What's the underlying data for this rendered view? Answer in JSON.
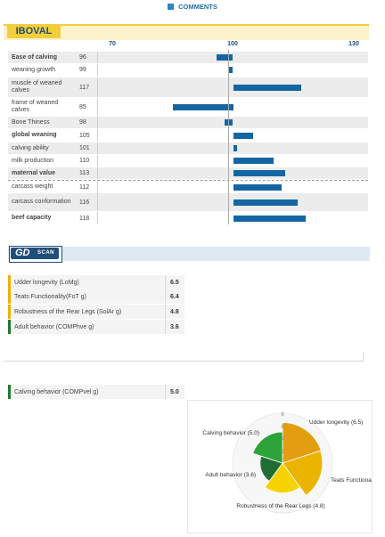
{
  "header": {
    "comments_label": "COMMENTS",
    "accent": "#2a85c2"
  },
  "iboval": {
    "title": "IBOVAL",
    "ticks": [
      "70",
      "100",
      "130"
    ],
    "rows": [
      {
        "label": "Ease of calving",
        "value": "96",
        "bold": true
      },
      {
        "label": "weaning growth",
        "value": "99",
        "bold": false
      },
      {
        "label": "muscle of weaned calves",
        "value": "117",
        "bold": false
      },
      {
        "label": "frame of weaned calves",
        "value": "85",
        "bold": false
      },
      {
        "label": "Bone Thiness",
        "value": "98",
        "bold": false
      },
      {
        "label": "global weaning",
        "value": "105",
        "bold": true
      },
      {
        "label": "calving ability",
        "value": "101",
        "bold": false
      },
      {
        "label": "milk production",
        "value": "110",
        "bold": false
      },
      {
        "label": "maternal value",
        "value": "113",
        "bold": true
      },
      {
        "label": "carcass weight",
        "value": "112",
        "bold": false
      },
      {
        "label": "carcass conformation",
        "value": "116",
        "bold": false
      },
      {
        "label": "beef capacity",
        "value": "118",
        "bold": true
      }
    ]
  },
  "gdscan": {
    "logo_text": "GD",
    "logo_sub": "SCAN",
    "rows": [
      {
        "label": "Udder longevity (LoMg)",
        "value": "6.5",
        "color": "#f0b000"
      },
      {
        "label": "Teats Functionality(FoT g)",
        "value": "6.4",
        "color": "#f0b000"
      },
      {
        "label": "Robustness of the Rear Legs (SolAr g)",
        "value": "4.8",
        "color": "#f0b000"
      },
      {
        "label": "Adult behavior (COMPhve g)",
        "value": "3.6",
        "color": "#1e7a2e"
      }
    ],
    "calving_row": {
      "label": "Calving behavior (COMPvel g)",
      "value": "5.0",
      "color": "#1e7a2e"
    }
  },
  "chart_data": [
    {
      "type": "bar",
      "title": "IBOVAL",
      "categories": [
        "Ease of calving",
        "weaning growth",
        "muscle of weaned calves",
        "frame of weaned calves",
        "Bone Thiness",
        "global weaning",
        "calving ability",
        "milk production",
        "maternal value",
        "carcass weight",
        "carcass conformation",
        "beef capacity"
      ],
      "values": [
        96,
        99,
        117,
        85,
        98,
        105,
        101,
        110,
        113,
        112,
        116,
        118
      ],
      "baseline": 100,
      "xlim": [
        70,
        130
      ],
      "xticks": [
        70,
        100,
        130
      ],
      "orientation": "horizontal",
      "color": "#1466a3"
    },
    {
      "type": "pie",
      "subtype": "polar-area",
      "categories": [
        "Udder longevity (6.5)",
        "Teats Functionality",
        "Robustness of the Rear Legs (4.8)",
        "Adult behavior (3.6)",
        "Calving behavior (5.0)"
      ],
      "values": [
        6.5,
        6.4,
        4.8,
        3.6,
        5.0
      ],
      "colors": [
        "#e39e10",
        "#eab400",
        "#f6d200",
        "#1f6e33",
        "#2ea33a"
      ],
      "rlim": [
        0,
        8
      ],
      "rticks": [
        "2",
        "4",
        "6",
        "8"
      ]
    }
  ]
}
